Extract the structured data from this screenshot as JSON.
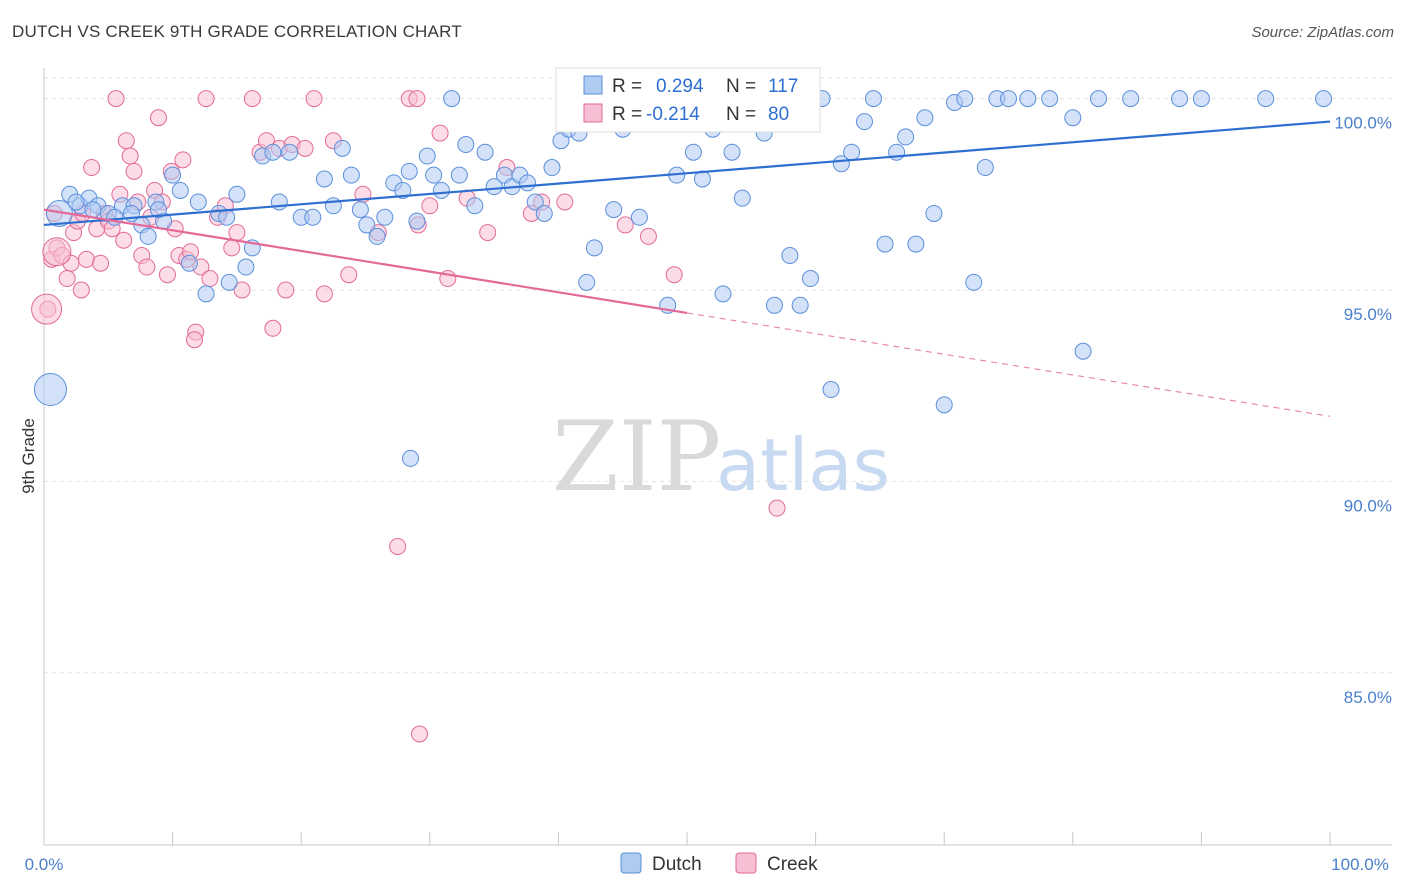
{
  "title": "DUTCH VS CREEK 9TH GRADE CORRELATION CHART",
  "source": "Source: ZipAtlas.com",
  "watermark": {
    "zip": "ZIP",
    "atlas": "atlas"
  },
  "legend": {
    "dutch": {
      "r_label": "R =",
      "r_value": "0.294",
      "n_label": "N =",
      "n_value": "117"
    },
    "creek": {
      "r_label": "R =",
      "r_value": "-0.214",
      "n_label": "N =",
      "n_value": "80"
    }
  },
  "colors": {
    "dutch": "#5b8fdb",
    "dutch_fill": "#aecbf2",
    "creek": "#e36a98",
    "creek_fill": "#f7bfd3",
    "grid": "#e3e3e3"
  },
  "chart_data": {
    "type": "scatter",
    "title": "DUTCH VS CREEK 9TH GRADE CORRELATION CHART",
    "xlabel": "",
    "ylabel": "9th Grade",
    "xlim": [
      0,
      100
    ],
    "ylim": [
      80.5,
      100.8
    ],
    "x_tick_labels": [
      "0.0%",
      "100.0%"
    ],
    "y_ticks": [
      85,
      90,
      95,
      100
    ],
    "y_tick_labels": [
      "85.0%",
      "90.0%",
      "95.0%",
      "100.0%"
    ],
    "grid": true,
    "legend_position": "top-center",
    "series": [
      {
        "name": "Dutch",
        "r": 0.294,
        "n": 117,
        "trend": {
          "x0": 0,
          "y0": 96.7,
          "x1": 100,
          "y1": 99.4
        },
        "points": [
          [
            1.2,
            97.0
          ],
          [
            2.0,
            97.5
          ],
          [
            2.8,
            97.2
          ],
          [
            3.5,
            97.4
          ],
          [
            4.2,
            97.2
          ],
          [
            5.0,
            97.0
          ],
          [
            6.1,
            97.2
          ],
          [
            7.0,
            97.2
          ],
          [
            7.6,
            96.7
          ],
          [
            8.1,
            96.4
          ],
          [
            8.7,
            97.3
          ],
          [
            9.3,
            96.8
          ],
          [
            10.0,
            98.0
          ],
          [
            10.6,
            97.6
          ],
          [
            11.3,
            95.7
          ],
          [
            12.0,
            97.3
          ],
          [
            12.6,
            94.9
          ],
          [
            13.6,
            97.0
          ],
          [
            14.4,
            95.2
          ],
          [
            15.0,
            97.5
          ],
          [
            15.7,
            95.6
          ],
          [
            16.2,
            96.1
          ],
          [
            17.0,
            98.5
          ],
          [
            17.8,
            98.6
          ],
          [
            18.3,
            97.3
          ],
          [
            19.1,
            98.6
          ],
          [
            20.0,
            96.9
          ],
          [
            20.9,
            96.9
          ],
          [
            21.8,
            97.9
          ],
          [
            22.5,
            97.2
          ],
          [
            23.2,
            98.7
          ],
          [
            23.9,
            98.0
          ],
          [
            24.6,
            97.1
          ],
          [
            25.1,
            96.7
          ],
          [
            25.9,
            96.4
          ],
          [
            26.5,
            96.9
          ],
          [
            27.2,
            97.8
          ],
          [
            27.9,
            97.6
          ],
          [
            28.4,
            98.1
          ],
          [
            29.0,
            96.8
          ],
          [
            29.8,
            98.5
          ],
          [
            30.3,
            98.0
          ],
          [
            30.9,
            97.6
          ],
          [
            31.7,
            100.0
          ],
          [
            32.3,
            98.0
          ],
          [
            32.8,
            98.8
          ],
          [
            33.5,
            97.2
          ],
          [
            34.3,
            98.6
          ],
          [
            35.0,
            97.7
          ],
          [
            35.8,
            98.0
          ],
          [
            36.4,
            97.7
          ],
          [
            37.0,
            98.0
          ],
          [
            37.6,
            97.8
          ],
          [
            38.2,
            97.3
          ],
          [
            38.9,
            97.0
          ],
          [
            39.5,
            98.2
          ],
          [
            40.2,
            98.9
          ],
          [
            40.8,
            99.2
          ],
          [
            41.6,
            99.1
          ],
          [
            42.2,
            95.2
          ],
          [
            42.8,
            96.1
          ],
          [
            43.6,
            99.6
          ],
          [
            44.3,
            97.1
          ],
          [
            45.0,
            99.2
          ],
          [
            45.5,
            100.0
          ],
          [
            46.3,
            96.9
          ],
          [
            47.1,
            99.5
          ],
          [
            47.8,
            100.0
          ],
          [
            48.5,
            94.6
          ],
          [
            49.2,
            98.0
          ],
          [
            49.7,
            99.5
          ],
          [
            50.5,
            98.6
          ],
          [
            51.2,
            97.9
          ],
          [
            52.0,
            99.2
          ],
          [
            52.8,
            94.9
          ],
          [
            53.5,
            98.6
          ],
          [
            54.3,
            97.4
          ],
          [
            55.1,
            99.6
          ],
          [
            56.0,
            99.1
          ],
          [
            56.8,
            94.6
          ],
          [
            57.6,
            100.0
          ],
          [
            58.0,
            95.9
          ],
          [
            58.8,
            94.6
          ],
          [
            59.6,
            95.3
          ],
          [
            60.5,
            100.0
          ],
          [
            61.2,
            92.4
          ],
          [
            62.0,
            98.3
          ],
          [
            62.8,
            98.6
          ],
          [
            63.8,
            99.4
          ],
          [
            64.5,
            100.0
          ],
          [
            65.4,
            96.2
          ],
          [
            66.3,
            98.6
          ],
          [
            67.0,
            99.0
          ],
          [
            67.8,
            96.2
          ],
          [
            68.5,
            99.5
          ],
          [
            69.2,
            97.0
          ],
          [
            70.0,
            92.0
          ],
          [
            70.8,
            99.9
          ],
          [
            71.6,
            100.0
          ],
          [
            72.3,
            95.2
          ],
          [
            73.2,
            98.2
          ],
          [
            74.1,
            100.0
          ],
          [
            75.0,
            100.0
          ],
          [
            76.5,
            100.0
          ],
          [
            78.2,
            100.0
          ],
          [
            80.0,
            99.5
          ],
          [
            80.8,
            93.4
          ],
          [
            82.0,
            100.0
          ],
          [
            84.5,
            100.0
          ],
          [
            88.3,
            100.0
          ],
          [
            90.0,
            100.0
          ],
          [
            95.0,
            100.0
          ],
          [
            99.5,
            100.0
          ],
          [
            28.5,
            90.6
          ],
          [
            5.5,
            96.9
          ],
          [
            2.5,
            97.3
          ],
          [
            3.8,
            97.1
          ],
          [
            6.8,
            97.0
          ],
          [
            8.9,
            97.1
          ],
          [
            14.2,
            96.9
          ]
        ]
      },
      {
        "name": "Creek",
        "r": -0.214,
        "n": 80,
        "trend": {
          "x0": 0,
          "y0": 97.1,
          "x1": 50,
          "y1": 94.4
        },
        "trend_dashed": {
          "x0": 50,
          "y0": 94.4,
          "x1": 100,
          "y1": 91.7
        },
        "points": [
          [
            0.6,
            95.8
          ],
          [
            1.0,
            96.1
          ],
          [
            1.4,
            95.9
          ],
          [
            1.8,
            95.3
          ],
          [
            2.3,
            96.5
          ],
          [
            2.6,
            96.8
          ],
          [
            2.9,
            95.0
          ],
          [
            3.3,
            95.8
          ],
          [
            3.7,
            98.2
          ],
          [
            4.1,
            96.6
          ],
          [
            4.4,
            95.7
          ],
          [
            4.7,
            97.0
          ],
          [
            5.0,
            96.8
          ],
          [
            5.3,
            96.6
          ],
          [
            5.6,
            100.0
          ],
          [
            5.9,
            97.5
          ],
          [
            6.2,
            96.3
          ],
          [
            6.4,
            98.9
          ],
          [
            6.7,
            98.5
          ],
          [
            7.0,
            98.1
          ],
          [
            7.3,
            97.3
          ],
          [
            7.6,
            95.9
          ],
          [
            8.0,
            95.6
          ],
          [
            8.3,
            96.9
          ],
          [
            8.6,
            97.6
          ],
          [
            8.9,
            99.5
          ],
          [
            9.2,
            97.3
          ],
          [
            9.6,
            95.4
          ],
          [
            9.9,
            98.1
          ],
          [
            10.2,
            96.6
          ],
          [
            10.5,
            95.9
          ],
          [
            10.8,
            98.4
          ],
          [
            11.1,
            95.8
          ],
          [
            11.4,
            96.0
          ],
          [
            11.8,
            93.9
          ],
          [
            12.2,
            95.6
          ],
          [
            12.6,
            100.0
          ],
          [
            12.9,
            95.3
          ],
          [
            13.5,
            96.9
          ],
          [
            14.1,
            97.2
          ],
          [
            14.6,
            96.1
          ],
          [
            15.0,
            96.5
          ],
          [
            15.4,
            95.0
          ],
          [
            16.2,
            100.0
          ],
          [
            16.8,
            98.6
          ],
          [
            17.3,
            98.9
          ],
          [
            17.8,
            94.0
          ],
          [
            18.3,
            98.7
          ],
          [
            18.8,
            95.0
          ],
          [
            19.3,
            98.8
          ],
          [
            20.3,
            98.7
          ],
          [
            21.0,
            100.0
          ],
          [
            21.8,
            94.9
          ],
          [
            22.5,
            98.9
          ],
          [
            23.7,
            95.4
          ],
          [
            24.8,
            97.5
          ],
          [
            26.0,
            96.5
          ],
          [
            27.5,
            88.3
          ],
          [
            28.4,
            100.0
          ],
          [
            29.1,
            96.7
          ],
          [
            30.0,
            97.2
          ],
          [
            30.8,
            99.1
          ],
          [
            31.4,
            95.3
          ],
          [
            32.9,
            97.4
          ],
          [
            34.5,
            96.5
          ],
          [
            29.0,
            100.0
          ],
          [
            36.0,
            98.2
          ],
          [
            38.7,
            97.3
          ],
          [
            37.9,
            97.0
          ],
          [
            40.5,
            97.3
          ],
          [
            45.2,
            96.7
          ],
          [
            47.0,
            96.4
          ],
          [
            49.0,
            95.4
          ],
          [
            57.0,
            89.3
          ],
          [
            29.2,
            83.4
          ],
          [
            0.3,
            94.5
          ],
          [
            11.7,
            93.7
          ],
          [
            0.8,
            97.0
          ],
          [
            2.1,
            95.7
          ],
          [
            3.0,
            97.0
          ]
        ]
      }
    ]
  }
}
